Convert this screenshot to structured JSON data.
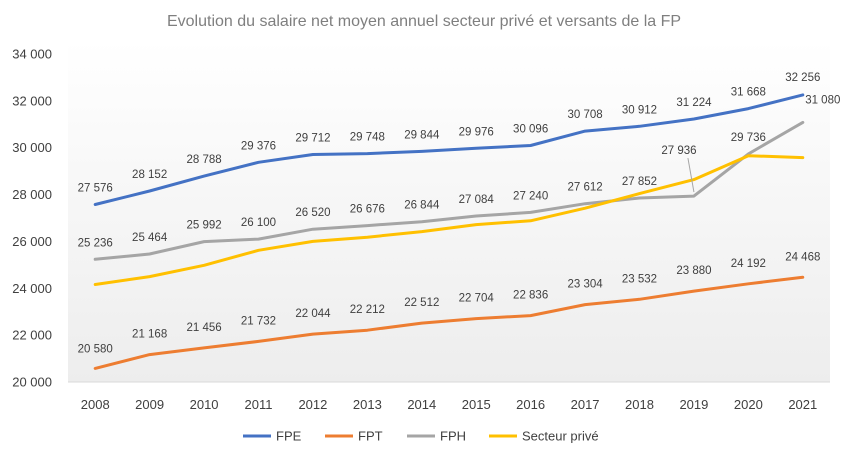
{
  "chart_data": {
    "type": "line",
    "title": "Evolution du salaire net moyen annuel secteur privé et versants de la FP",
    "xlabel": "",
    "ylabel": "",
    "categories": [
      "2008",
      "2009",
      "2010",
      "2011",
      "2012",
      "2013",
      "2014",
      "2015",
      "2016",
      "2017",
      "2018",
      "2019",
      "2020",
      "2021"
    ],
    "ylim": [
      20000,
      34000
    ],
    "yticks": [
      20000,
      22000,
      24000,
      26000,
      28000,
      30000,
      32000,
      34000
    ],
    "ytick_labels": [
      "20 000",
      "22 000",
      "24 000",
      "26 000",
      "28 000",
      "30 000",
      "32 000",
      "34 000"
    ],
    "grid": false,
    "legend_position": "bottom",
    "series": [
      {
        "name": "FPE",
        "color": "#4472C4",
        "values": [
          27576,
          28152,
          28788,
          29376,
          29712,
          29748,
          29844,
          29976,
          30096,
          30708,
          30912,
          31224,
          31668,
          32256
        ],
        "labels": [
          "27 576",
          "28 152",
          "28 788",
          "29 376",
          "29 712",
          "29 748",
          "29 844",
          "29 976",
          "30 096",
          "30 708",
          "30 912",
          "31 224",
          "31 668",
          "32 256"
        ]
      },
      {
        "name": "FPT",
        "color": "#ED7D31",
        "values": [
          20580,
          21168,
          21456,
          21732,
          22044,
          22212,
          22512,
          22704,
          22836,
          23304,
          23532,
          23880,
          24192,
          24468
        ],
        "labels": [
          "20 580",
          "21 168",
          "21 456",
          "21 732",
          "22 044",
          "22 212",
          "22 512",
          "22 704",
          "22 836",
          "23 304",
          "23 532",
          "23 880",
          "24 192",
          "24 468"
        ]
      },
      {
        "name": "FPH",
        "color": "#A5A5A5",
        "values": [
          25236,
          25464,
          25992,
          26100,
          26520,
          26676,
          26844,
          27084,
          27240,
          27612,
          27852,
          27936,
          29736,
          31080
        ],
        "labels": [
          "25 236",
          "25 464",
          "25 992",
          "26 100",
          "26 520",
          "26 676",
          "26 844",
          "27 084",
          "27 240",
          "27 612",
          "27 852",
          "27 936",
          "29 736",
          "31 080"
        ]
      },
      {
        "name": "Secteur privé",
        "color": "#FFC000",
        "values": [
          24160,
          24500,
          24980,
          25620,
          26000,
          26180,
          26420,
          26720,
          26880,
          27420,
          28040,
          28640,
          29660,
          29580
        ],
        "labels": []
      }
    ]
  }
}
